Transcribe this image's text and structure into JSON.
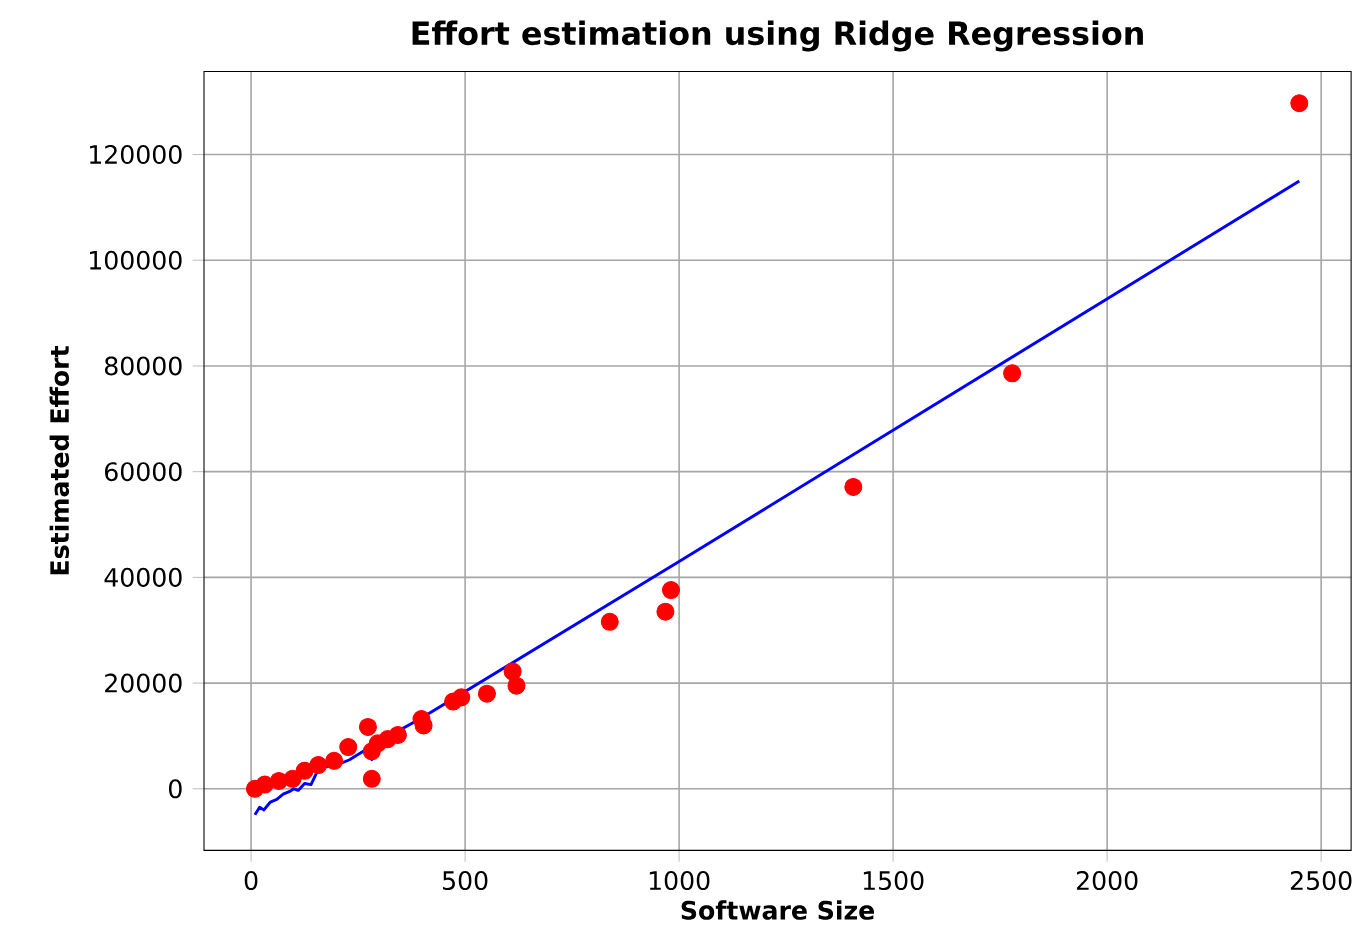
{
  "chart_data": {
    "type": "scatter",
    "title": "Effort estimation using Ridge Regression",
    "xlabel": "Software Size",
    "ylabel": "Estimated Effort",
    "series": [
      {
        "color": "#ff0000",
        "marker": "circle",
        "x": [
          2449,
          1778,
          1407,
          981,
          968,
          838,
          611,
          620,
          551,
          491,
          472,
          398,
          403,
          343,
          319,
          296,
          282,
          273,
          282,
          227,
          194,
          157,
          125,
          97,
          65,
          32,
          9
        ],
        "values": [
          129700,
          78600,
          57100,
          37600,
          33500,
          31600,
          22200,
          19500,
          18000,
          17300,
          16500,
          13200,
          12000,
          10200,
          9400,
          8600,
          7100,
          11700,
          1900,
          7900,
          5300,
          4500,
          3400,
          1900,
          1500,
          800,
          0
        ]
      },
      {
        "type": "line",
        "color": "#0000ff",
        "marker": "none",
        "x": [
          9,
          20,
          30,
          45,
          60,
          75,
          90,
          100,
          110,
          125,
          140,
          150,
          160,
          200,
          230,
          280,
          282,
          290,
          400,
          1000,
          2449
        ],
        "values": [
          -4900,
          -3500,
          -4000,
          -2500,
          -2000,
          -1000,
          -500,
          0,
          -300,
          1000,
          800,
          2500,
          4000,
          4500,
          5500,
          8000,
          5500,
          8500,
          13500,
          43000,
          115000
        ]
      }
    ],
    "xlim": [
      -110,
      2570
    ],
    "ylim": [
      -11650,
      135700
    ],
    "xticks": [
      0,
      500,
      1000,
      1500,
      2000,
      2500
    ],
    "yticks": [
      0,
      20000,
      40000,
      60000,
      80000,
      100000,
      120000
    ],
    "grid": true
  }
}
